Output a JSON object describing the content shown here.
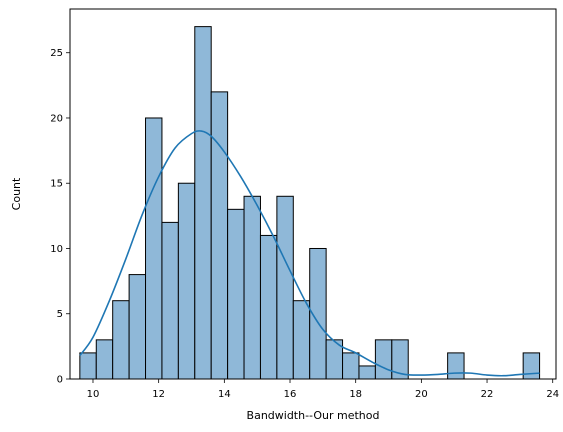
{
  "chart_data": {
    "type": "bar",
    "xlabel": "Bandwidth--Our method",
    "ylabel": "Count",
    "xlim": [
      9.3,
      24.1
    ],
    "ylim": [
      0,
      28.35
    ],
    "x_ticks": [
      10,
      12,
      14,
      16,
      18,
      20,
      22,
      24
    ],
    "y_ticks": [
      0,
      5,
      10,
      15,
      20,
      25
    ],
    "bin_start": 9.6,
    "bin_width": 0.5,
    "counts": [
      2,
      3,
      6,
      8,
      20,
      12,
      15,
      27,
      22,
      13,
      14,
      11,
      14,
      6,
      10,
      3,
      2,
      1,
      3,
      3,
      0,
      0,
      0,
      0,
      0,
      0,
      0,
      0
    ],
    "counts_tail": [
      {
        "x0": 20.8,
        "x1": 21.3,
        "count": 2
      },
      {
        "x0": 23.1,
        "x1": 23.6,
        "count": 2
      }
    ],
    "kde": {
      "x": [
        9.6,
        10.0,
        10.5,
        11.0,
        11.5,
        12.0,
        12.5,
        13.0,
        13.3,
        13.6,
        14.0,
        14.5,
        15.0,
        15.5,
        16.0,
        16.5,
        17.0,
        17.5,
        18.0,
        18.5,
        19.0,
        19.5,
        20.0,
        20.5,
        21.0,
        21.5,
        22.0,
        22.5,
        23.0,
        23.6
      ],
      "y": [
        1.8,
        3.2,
        6.0,
        9.2,
        12.6,
        15.5,
        17.7,
        18.8,
        19.0,
        18.6,
        17.4,
        15.5,
        13.3,
        10.9,
        8.3,
        5.8,
        3.8,
        2.6,
        2.0,
        1.3,
        0.7,
        0.35,
        0.3,
        0.35,
        0.45,
        0.45,
        0.3,
        0.25,
        0.35,
        0.45
      ]
    },
    "colors": {
      "bar_fill": "#8fb8d8",
      "bar_edge": "#000000",
      "kde_line": "#1f77b4"
    },
    "grid": false
  }
}
